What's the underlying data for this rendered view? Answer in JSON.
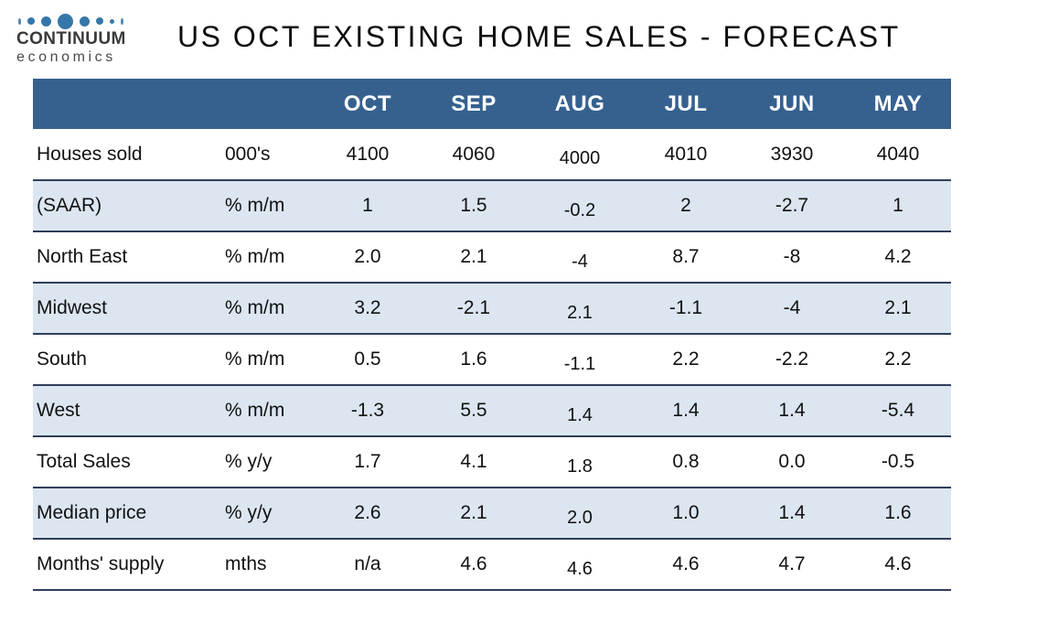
{
  "logo": {
    "line1": "CONTINUUM",
    "line2": "economics"
  },
  "title": "US OCT EXISTING HOME SALES - FORECAST",
  "colors": {
    "header_bg": "#36618F",
    "stripe_bg": "#DCE6F1",
    "row_border": "#2F3E5C",
    "logo_dot": "#3577A8"
  },
  "table": {
    "columns": [
      "OCT",
      "SEP",
      "AUG",
      "JUL",
      "JUN",
      "MAY"
    ],
    "rows": [
      {
        "label": "Houses sold",
        "unit": "000's",
        "values": [
          "4100",
          "4060",
          "4000",
          "4010",
          "3930",
          "4040"
        ]
      },
      {
        "label": "(SAAR)",
        "unit": "% m/m",
        "values": [
          "1",
          "1.5",
          "-0.2",
          "2",
          "-2.7",
          "1"
        ]
      },
      {
        "label": "North East",
        "unit": "% m/m",
        "values": [
          "2.0",
          "2.1",
          "-4",
          "8.7",
          "-8",
          "4.2"
        ]
      },
      {
        "label": "Midwest",
        "unit": "% m/m",
        "values": [
          "3.2",
          "-2.1",
          "2.1",
          "-1.1",
          "-4",
          "2.1"
        ]
      },
      {
        "label": "South",
        "unit": "% m/m",
        "values": [
          "0.5",
          "1.6",
          "-1.1",
          "2.2",
          "-2.2",
          "2.2"
        ]
      },
      {
        "label": "West",
        "unit": "% m/m",
        "values": [
          "-1.3",
          "5.5",
          "1.4",
          "1.4",
          "1.4",
          "-5.4"
        ]
      },
      {
        "label": "Total Sales",
        "unit": "% y/y",
        "values": [
          "1.7",
          "4.1",
          "1.8",
          "0.8",
          "0.0",
          "-0.5"
        ]
      },
      {
        "label": "Median price",
        "unit": "% y/y",
        "values": [
          "2.6",
          "2.1",
          "2.0",
          "1.0",
          "1.4",
          "1.6"
        ]
      },
      {
        "label": "Months' supply",
        "unit": "mths",
        "values": [
          "n/a",
          "4.6",
          "4.6",
          "4.6",
          "4.7",
          "4.6"
        ]
      }
    ]
  },
  "chart_data": {
    "type": "table",
    "title": "US OCT EXISTING HOME SALES - FORECAST",
    "categories": [
      "OCT",
      "SEP",
      "AUG",
      "JUL",
      "JUN",
      "MAY"
    ],
    "series": [
      {
        "name": "Houses sold (000's)",
        "values": [
          4100,
          4060,
          4000,
          4010,
          3930,
          4040
        ]
      },
      {
        "name": "(SAAR) (% m/m)",
        "values": [
          1,
          1.5,
          -0.2,
          2,
          -2.7,
          1
        ]
      },
      {
        "name": "North East (% m/m)",
        "values": [
          2.0,
          2.1,
          -4,
          8.7,
          -8,
          4.2
        ]
      },
      {
        "name": "Midwest (% m/m)",
        "values": [
          3.2,
          -2.1,
          2.1,
          -1.1,
          -4,
          2.1
        ]
      },
      {
        "name": "South (% m/m)",
        "values": [
          0.5,
          1.6,
          -1.1,
          2.2,
          -2.2,
          2.2
        ]
      },
      {
        "name": "West (% m/m)",
        "values": [
          -1.3,
          5.5,
          1.4,
          1.4,
          1.4,
          -5.4
        ]
      },
      {
        "name": "Total Sales (% y/y)",
        "values": [
          1.7,
          4.1,
          1.8,
          0.8,
          0.0,
          -0.5
        ]
      },
      {
        "name": "Median price (% y/y)",
        "values": [
          2.6,
          2.1,
          2.0,
          1.0,
          1.4,
          1.6
        ]
      },
      {
        "name": "Months' supply (mths)",
        "values": [
          "n/a",
          4.6,
          4.6,
          4.6,
          4.7,
          4.6
        ]
      }
    ]
  }
}
